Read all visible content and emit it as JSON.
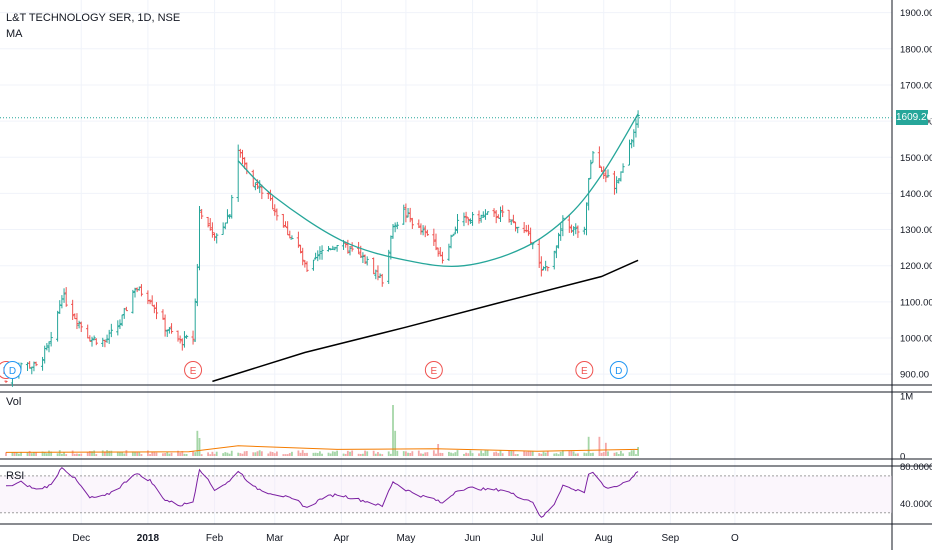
{
  "title": "L&T TECHNOLOGY SER, 1D, NSE",
  "indicator": "MA",
  "volume_label": "Vol",
  "rsi_label": "RSI",
  "last_price": "1609.20",
  "colors": {
    "up": "#26a69a",
    "down": "#ef5350",
    "ma": "#000000",
    "curve": "#26a69a",
    "rsi": "#7b1fa2",
    "vol_ma": "#f57c00",
    "last_price": "#26a69a",
    "event_e": "#ef5350",
    "event_d": "#2196f3"
  },
  "events": [
    {
      "label": "E",
      "x_date": "2017-10-27"
    },
    {
      "label": "D",
      "x_date": "2017-10-30"
    },
    {
      "label": "E",
      "x_date": "2018-01-22"
    },
    {
      "label": "E",
      "x_date": "2018-05-14"
    },
    {
      "label": "E",
      "x_date": "2018-07-23"
    },
    {
      "label": "D",
      "x_date": "2018-08-08"
    }
  ],
  "chart_data": [
    {
      "type": "candlestick",
      "title": "L&T TECHNOLOGY SER, 1D, NSE",
      "y_ticks": [
        900,
        1000,
        1100,
        1200,
        1300,
        1400,
        1500,
        1600,
        1700,
        1800,
        1900
      ],
      "y_tick_labels": [
        "900.00",
        "1000.00",
        "1100.00",
        "1200.00",
        "1300.00",
        "1400.00",
        "1500.00",
        "1600.00",
        "1700.00",
        "1800.00",
        "1900.00"
      ],
      "ylim": [
        870,
        1935
      ],
      "x_ticks": [
        "Dec",
        "2018",
        "Feb",
        "Mar",
        "Apr",
        "May",
        "Jun",
        "Jul",
        "Aug",
        "Sep",
        "O"
      ],
      "price_anchors": [
        [
          "2017-10-27",
          880
        ],
        [
          "2017-11-03",
          930
        ],
        [
          "2017-11-10",
          920
        ],
        [
          "2017-11-17",
          990
        ],
        [
          "2017-11-22",
          1120
        ],
        [
          "2017-11-28",
          1060
        ],
        [
          "2017-12-05",
          1000
        ],
        [
          "2017-12-12",
          990
        ],
        [
          "2017-12-19",
          1040
        ],
        [
          "2017-12-26",
          1140
        ],
        [
          "2018-01-02",
          1110
        ],
        [
          "2018-01-09",
          1030
        ],
        [
          "2018-01-16",
          990
        ],
        [
          "2018-01-22",
          1000
        ],
        [
          "2018-01-24",
          1200
        ],
        [
          "2018-01-25",
          1360
        ],
        [
          "2018-02-01",
          1270
        ],
        [
          "2018-02-08",
          1350
        ],
        [
          "2018-02-12",
          1520
        ],
        [
          "2018-02-19",
          1430
        ],
        [
          "2018-02-26",
          1390
        ],
        [
          "2018-03-05",
          1310
        ],
        [
          "2018-03-12",
          1250
        ],
        [
          "2018-03-16",
          1180
        ],
        [
          "2018-03-23",
          1240
        ],
        [
          "2018-03-30",
          1260
        ],
        [
          "2018-04-06",
          1240
        ],
        [
          "2018-04-13",
          1210
        ],
        [
          "2018-04-20",
          1160
        ],
        [
          "2018-04-25",
          1300
        ],
        [
          "2018-04-30",
          1350
        ],
        [
          "2018-05-07",
          1300
        ],
        [
          "2018-05-14",
          1270
        ],
        [
          "2018-05-18",
          1220
        ],
        [
          "2018-05-25",
          1320
        ],
        [
          "2018-06-01",
          1330
        ],
        [
          "2018-06-08",
          1340
        ],
        [
          "2018-06-15",
          1340
        ],
        [
          "2018-06-22",
          1310
        ],
        [
          "2018-06-29",
          1270
        ],
        [
          "2018-07-03",
          1180
        ],
        [
          "2018-07-09",
          1230
        ],
        [
          "2018-07-13",
          1320
        ],
        [
          "2018-07-18",
          1300
        ],
        [
          "2018-07-23",
          1290
        ],
        [
          "2018-07-25",
          1440
        ],
        [
          "2018-07-27",
          1520
        ],
        [
          "2018-08-01",
          1460
        ],
        [
          "2018-08-06",
          1420
        ],
        [
          "2018-08-09",
          1450
        ],
        [
          "2018-08-13",
          1530
        ],
        [
          "2018-08-17",
          1609
        ]
      ],
      "moving_average": [
        [
          "2018-01-31",
          880
        ],
        [
          "2018-03-15",
          960
        ],
        [
          "2018-05-01",
          1030
        ],
        [
          "2018-06-15",
          1100
        ],
        [
          "2018-07-31",
          1170
        ],
        [
          "2018-08-17",
          1215
        ]
      ],
      "cup_curve": [
        [
          "2018-02-12",
          1490
        ],
        [
          "2018-03-01",
          1390
        ],
        [
          "2018-04-01",
          1270
        ],
        [
          "2018-05-01",
          1215
        ],
        [
          "2018-05-28",
          1200
        ],
        [
          "2018-06-25",
          1250
        ],
        [
          "2018-07-16",
          1340
        ],
        [
          "2018-08-01",
          1460
        ],
        [
          "2018-08-17",
          1620
        ]
      ],
      "last_price": 1609.2
    },
    {
      "type": "bar",
      "title": "Vol",
      "y_ticks": [
        0,
        1000000
      ],
      "y_tick_labels": [
        "0",
        "1M"
      ],
      "ylim": [
        0,
        1100000
      ],
      "spikes": [
        [
          "2018-01-24",
          420000
        ],
        [
          "2018-01-25",
          300000
        ],
        [
          "2018-04-25",
          850000
        ],
        [
          "2018-04-26",
          420000
        ],
        [
          "2018-05-16",
          200000
        ],
        [
          "2018-07-25",
          320000
        ],
        [
          "2018-07-30",
          320000
        ],
        [
          "2018-08-02",
          220000
        ],
        [
          "2018-08-17",
          150000
        ]
      ],
      "vol_ma": [
        [
          "2017-10-27",
          60000
        ],
        [
          "2018-01-20",
          70000
        ],
        [
          "2018-02-12",
          170000
        ],
        [
          "2018-03-30",
          110000
        ],
        [
          "2018-05-15",
          120000
        ],
        [
          "2018-07-01",
          80000
        ],
        [
          "2018-08-17",
          110000
        ]
      ]
    },
    {
      "type": "line",
      "title": "RSI",
      "y_ticks": [
        40,
        80
      ],
      "y_tick_labels": [
        "40.0000",
        "80.0000"
      ],
      "ylim": [
        20,
        85
      ],
      "bands": [
        70,
        30
      ],
      "values": [
        [
          "2017-10-27",
          58
        ],
        [
          "2017-11-03",
          63
        ],
        [
          "2017-11-10",
          55
        ],
        [
          "2017-11-17",
          60
        ],
        [
          "2017-11-22",
          80
        ],
        [
          "2017-11-28",
          67
        ],
        [
          "2017-12-05",
          46
        ],
        [
          "2017-12-12",
          48
        ],
        [
          "2017-12-19",
          58
        ],
        [
          "2017-12-26",
          73
        ],
        [
          "2018-01-02",
          65
        ],
        [
          "2018-01-09",
          44
        ],
        [
          "2018-01-16",
          38
        ],
        [
          "2018-01-22",
          42
        ],
        [
          "2018-01-25",
          78
        ],
        [
          "2018-02-01",
          55
        ],
        [
          "2018-02-08",
          64
        ],
        [
          "2018-02-12",
          76
        ],
        [
          "2018-02-19",
          58
        ],
        [
          "2018-02-26",
          52
        ],
        [
          "2018-03-05",
          48
        ],
        [
          "2018-03-12",
          42
        ],
        [
          "2018-03-16",
          35
        ],
        [
          "2018-03-23",
          46
        ],
        [
          "2018-03-30",
          50
        ],
        [
          "2018-04-06",
          46
        ],
        [
          "2018-04-13",
          42
        ],
        [
          "2018-04-20",
          37
        ],
        [
          "2018-04-25",
          64
        ],
        [
          "2018-04-30",
          56
        ],
        [
          "2018-05-07",
          49
        ],
        [
          "2018-05-14",
          45
        ],
        [
          "2018-05-18",
          40
        ],
        [
          "2018-05-25",
          55
        ],
        [
          "2018-06-01",
          57
        ],
        [
          "2018-06-08",
          55
        ],
        [
          "2018-06-15",
          55
        ],
        [
          "2018-06-22",
          48
        ],
        [
          "2018-06-29",
          42
        ],
        [
          "2018-07-03",
          24
        ],
        [
          "2018-07-09",
          40
        ],
        [
          "2018-07-13",
          60
        ],
        [
          "2018-07-18",
          55
        ],
        [
          "2018-07-23",
          53
        ],
        [
          "2018-07-25",
          72
        ],
        [
          "2018-07-27",
          74
        ],
        [
          "2018-08-01",
          58
        ],
        [
          "2018-08-06",
          57
        ],
        [
          "2018-08-09",
          61
        ],
        [
          "2018-08-13",
          66
        ],
        [
          "2018-08-17",
          75
        ]
      ]
    }
  ]
}
